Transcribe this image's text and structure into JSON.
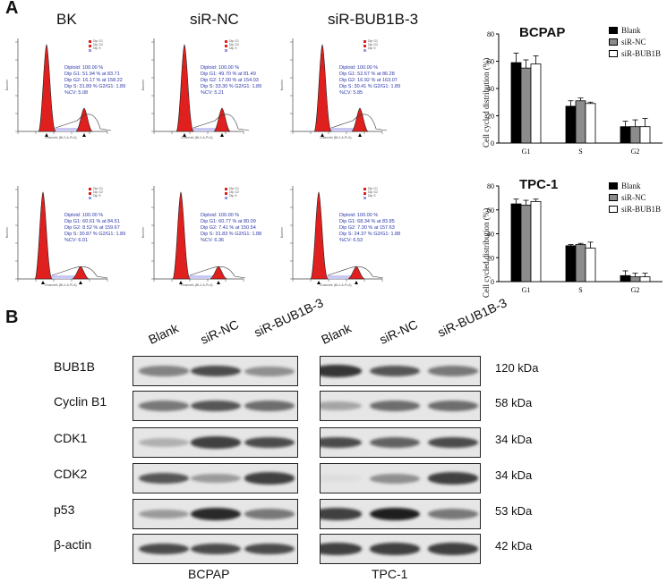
{
  "panel_a": {
    "letter": "A",
    "conditions": [
      "BK",
      "siR-NC",
      "siR-BUB1B-3"
    ],
    "histograms": [
      {
        "row": "BCPAP",
        "condition": "BK",
        "stats": [
          "Diploid: 100.00 %",
          "Dip G1: 51.94 % at 83.71",
          "Dip G2: 16.17 % at 158.22",
          "Dip S: 31.89 %   G2/G1: 1.89",
          "%CV: 5.08"
        ]
      },
      {
        "row": "BCPAP",
        "condition": "siR-NC",
        "stats": [
          "Diploid: 100.00 %",
          "Dip G1: 49.70 % at 81.49",
          "Dip G2: 17.00 % at 154.03",
          "Dip S: 33.30 %   G2/G1: 1.89",
          "%CV: 5.21"
        ]
      },
      {
        "row": "BCPAP",
        "condition": "siR-BUB1B-3",
        "stats": [
          "Diploid: 100.00 %",
          "Dip G1: 52.67 % at 86.28",
          "Dip G2: 16.92 % at 163.07",
          "Dip S: 30.41 %   G2/G1: 1.89",
          "%CV: 5.85"
        ]
      },
      {
        "row": "TPC-1",
        "condition": "BK",
        "stats": [
          "Diploid: 100.00 %",
          "Dip G1: 60.61 % at 84.51",
          "Dip G2: 8.52 % at 159.67",
          "Dip S: 30.87 %   G2/G1: 1.89",
          "%CV: 6.01"
        ]
      },
      {
        "row": "TPC-1",
        "condition": "siR-NC",
        "stats": [
          "Diploid: 100.00 %",
          "Dip G1: 60.77 % at 80.09",
          "Dip G2: 7.41 % at 150.54",
          "Dip S: 31.83 %   G2/G1: 1.88",
          "%CV: 6.36"
        ]
      },
      {
        "row": "TPC-1",
        "condition": "siR-BUB1B-3",
        "stats": [
          "Diploid: 100.00 %",
          "Dip G1: 68.34 % at 83.85",
          "Dip G2: 7.30 % at 157.63",
          "Dip S: 24.37 %   G2/G1: 1.88",
          "%CV: 6.53"
        ]
      }
    ],
    "hist_legend": [
      "Dip G1",
      "Dip G2",
      "Dip S"
    ],
    "hist_xlabel": "Channels (BL2-A-Pl-A)",
    "hist_ylabel": "Number"
  },
  "chart_data": [
    {
      "type": "bar",
      "title": "BCPAP",
      "ylabel": "Cell cycled distribution (%)",
      "xlabel": "",
      "categories": [
        "G1",
        "S",
        "G2"
      ],
      "ylim": [
        0,
        80
      ],
      "yticks": [
        "0",
        "20",
        "40",
        "60",
        "80"
      ],
      "series": [
        {
          "name": "Blank",
          "color": "#000000",
          "values": [
            59,
            27,
            12
          ],
          "errors": [
            7,
            4,
            4
          ]
        },
        {
          "name": "siR-NC",
          "color": "#8c8c8c",
          "values": [
            55,
            31,
            12
          ],
          "errors": [
            6,
            2,
            5
          ]
        },
        {
          "name": "siR-BUB1B",
          "color": "#ffffff",
          "values": [
            58,
            29,
            12
          ],
          "errors": [
            6,
            1,
            6
          ]
        }
      ]
    },
    {
      "type": "bar",
      "title": "TPC-1",
      "ylabel": "Cell cycled distribution (%)",
      "xlabel": "",
      "categories": [
        "G1",
        "S",
        "G2"
      ],
      "ylim": [
        0,
        80
      ],
      "yticks": [
        "0",
        "20",
        "40",
        "60",
        "80"
      ],
      "series": [
        {
          "name": "Blank",
          "color": "#000000",
          "values": [
            65,
            30,
            5
          ],
          "errors": [
            4,
            1,
            4
          ]
        },
        {
          "name": "siR-NC",
          "color": "#8c8c8c",
          "values": [
            64,
            31,
            4
          ],
          "errors": [
            4,
            1,
            3
          ]
        },
        {
          "name": "siR-BUB1B",
          "color": "#ffffff",
          "values": [
            67,
            28,
            4
          ],
          "errors": [
            2,
            5,
            3
          ]
        }
      ]
    }
  ],
  "panel_b": {
    "letter": "B",
    "lanes": [
      "Blank",
      "siR-NC",
      "siR-BUB1B-3"
    ],
    "proteins": [
      {
        "name": "BUB1B",
        "kda": "120 kDa",
        "bcpap": [
          0.55,
          0.8,
          0.5
        ],
        "tpc1": [
          0.9,
          0.75,
          0.6
        ]
      },
      {
        "name": "Cyclin B1",
        "kda": "58 kDa",
        "bcpap": [
          0.6,
          0.75,
          0.65
        ],
        "tpc1": [
          0.4,
          0.65,
          0.65
        ]
      },
      {
        "name": "CDK1",
        "kda": "34 kDa",
        "bcpap": [
          0.35,
          0.85,
          0.8
        ],
        "tpc1": [
          0.8,
          0.7,
          0.8
        ]
      },
      {
        "name": "CDK2",
        "kda": "34 kDa",
        "bcpap": [
          0.75,
          0.45,
          0.85
        ],
        "tpc1": [
          0.15,
          0.5,
          0.85
        ]
      },
      {
        "name": "p53",
        "kda": "53 kDa",
        "bcpap": [
          0.45,
          0.95,
          0.6
        ],
        "tpc1": [
          0.85,
          1.0,
          0.6
        ]
      },
      {
        "name": "β-actin",
        "kda": "42 kDa",
        "bcpap": [
          0.8,
          0.8,
          0.8
        ],
        "tpc1": [
          0.85,
          0.85,
          0.85
        ]
      }
    ],
    "cell_lines": [
      "BCPAP",
      "TPC-1"
    ]
  }
}
